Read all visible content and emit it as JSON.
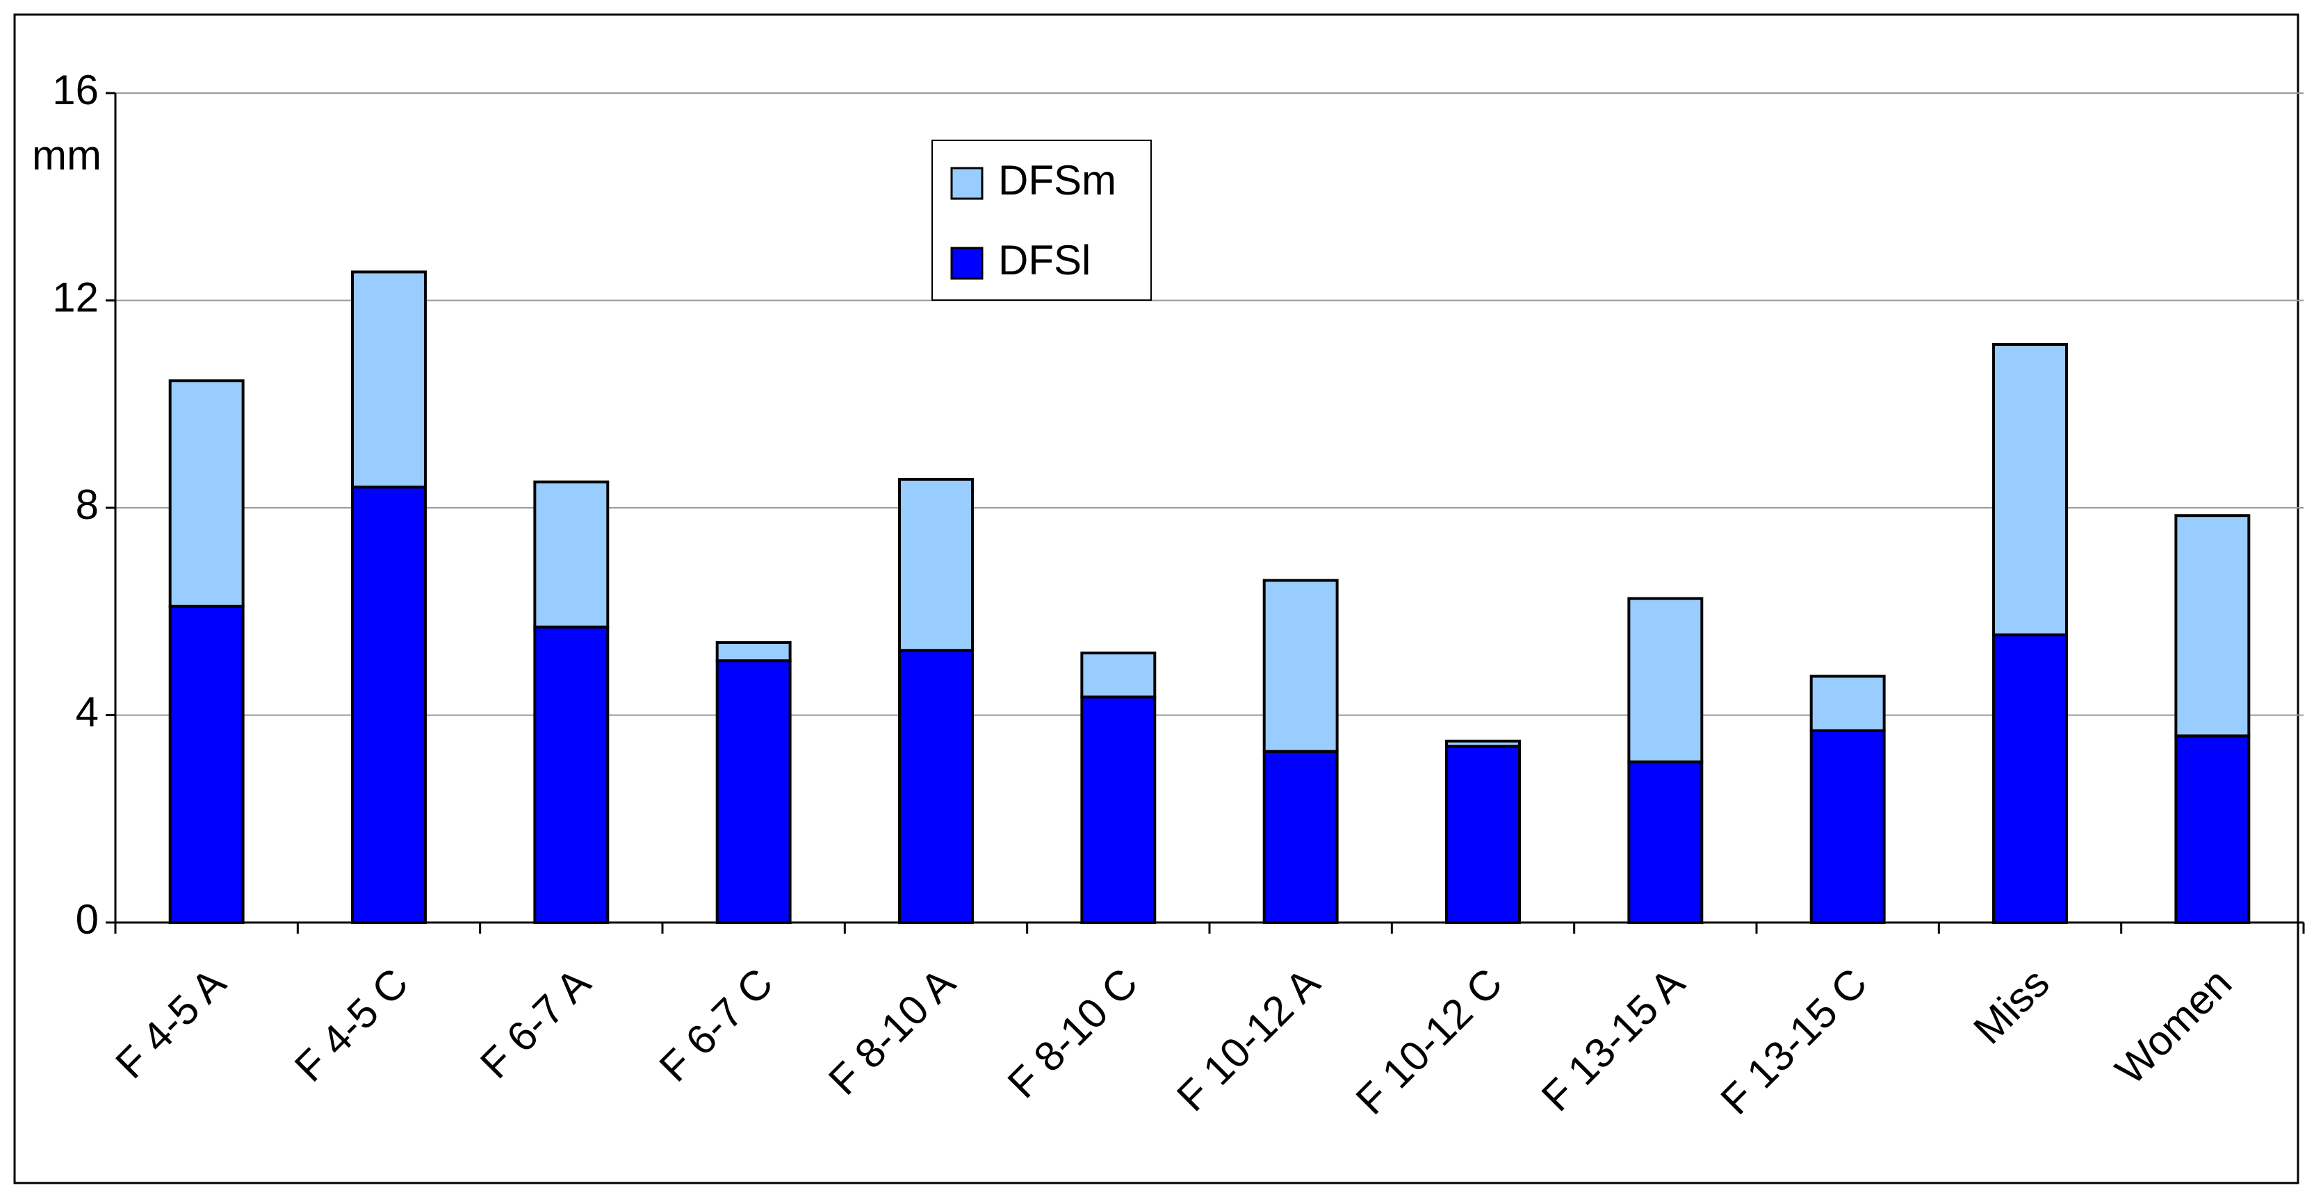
{
  "chart_data": {
    "type": "stacked_bar",
    "y_label": "mm",
    "categories": [
      "F 4-5 A",
      "F 4-5 C",
      "F 6-7 A",
      "F 6-7 C",
      "F 8-10 A",
      "F 8-10 C",
      "F 10-12 A",
      "F 10-12 C",
      "F 13-15 A",
      "F 13-15 C",
      "Miss",
      "Women"
    ],
    "series": [
      {
        "name": "DFSl",
        "color": "#0000ff",
        "values": [
          6.1,
          8.4,
          5.7,
          5.05,
          5.25,
          4.35,
          3.3,
          3.4,
          3.1,
          3.7,
          5.55,
          3.6
        ]
      },
      {
        "name": "DFSm",
        "color": "#99ccff",
        "values": [
          4.35,
          4.15,
          2.8,
          0.35,
          3.3,
          0.85,
          3.3,
          0.1,
          3.15,
          1.05,
          5.6,
          4.25
        ]
      }
    ],
    "ylim": [
      0,
      16
    ],
    "yticks": [
      0,
      4,
      8,
      12,
      16
    ],
    "grid": true
  }
}
